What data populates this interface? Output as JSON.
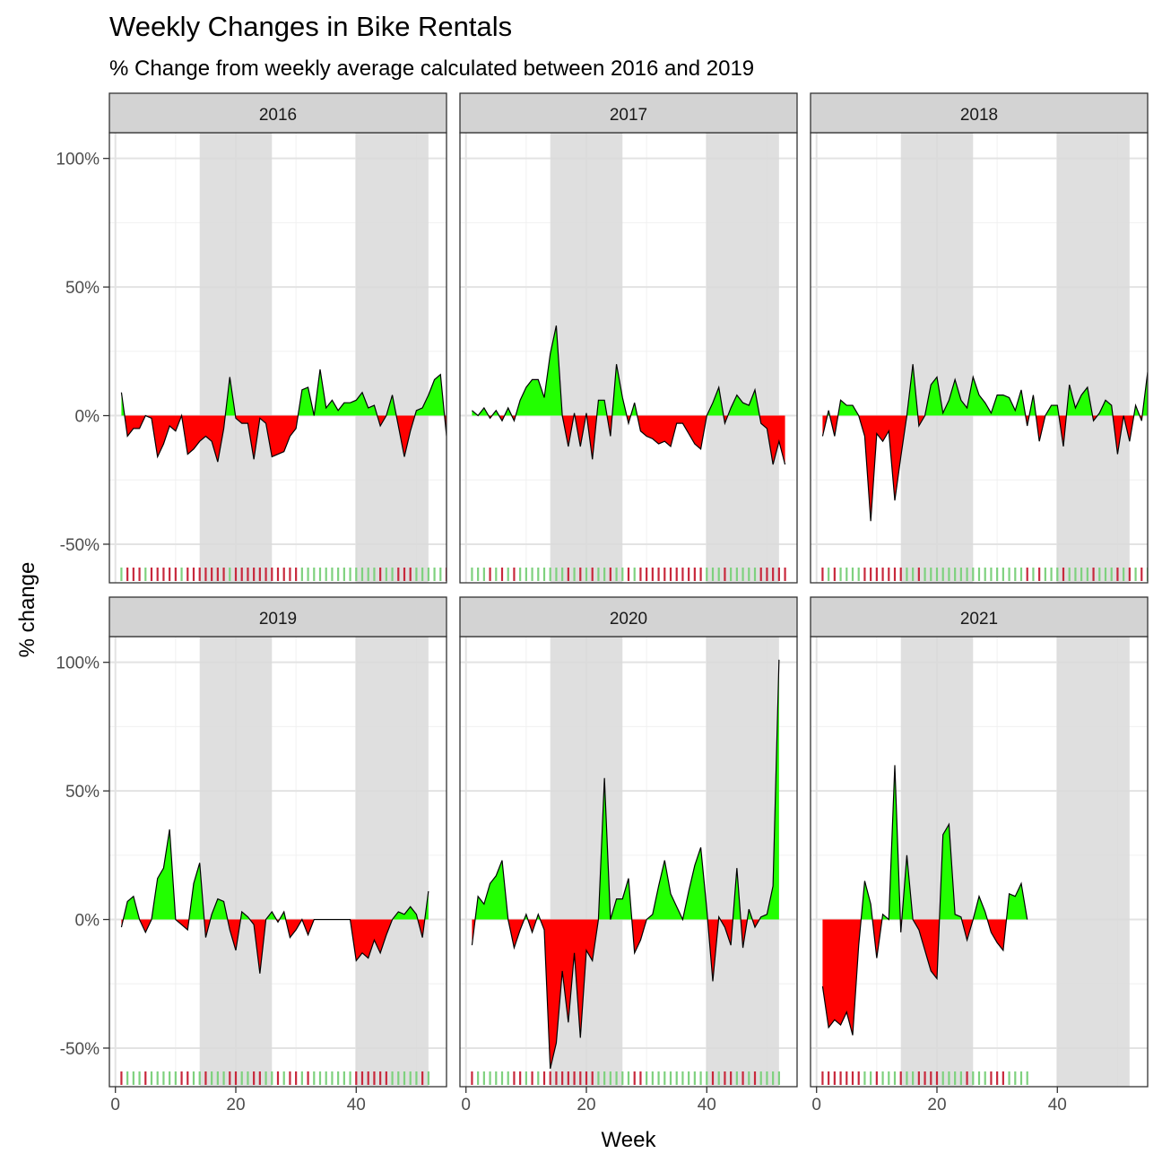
{
  "chart_data": {
    "type": "area",
    "title": "Weekly Changes in Bike Rentals",
    "subtitle": "% Change from weekly average calculated between 2016 and 2019",
    "xlabel": "Week",
    "ylabel": "% change",
    "xlim": [
      -1,
      55
    ],
    "ylim": [
      -65,
      110
    ],
    "x_ticks": [
      0,
      20,
      40
    ],
    "x_tick_labels": [
      "0",
      "20",
      "40"
    ],
    "y_ticks": [
      -50,
      0,
      50,
      100
    ],
    "y_tick_labels": [
      "-50%",
      "0%",
      "50%",
      "100%"
    ],
    "shaded_week_ranges": [
      [
        14,
        26
      ],
      [
        40,
        52
      ]
    ],
    "grid": true,
    "colors": {
      "positive": "#22ff00",
      "negative": "#ff0000",
      "rug_positive": "#7ed17e",
      "rug_negative": "#c8283c",
      "shade": "#d9d9d9",
      "strip": "#d3d3d3"
    },
    "panels": [
      {
        "label": "2016",
        "start_week": 1,
        "values": [
          9,
          -8,
          -5,
          -5,
          0,
          -1,
          -16,
          -11,
          -4,
          -6,
          0,
          -15,
          -13,
          -10,
          -8,
          -10,
          -18,
          -5,
          15,
          -1,
          -3,
          -3,
          -17,
          -1,
          -3,
          -16,
          -15,
          -14,
          -8,
          -5,
          10,
          11,
          0,
          18,
          3,
          6,
          2,
          5,
          5,
          6,
          9,
          3,
          4,
          -4,
          0,
          8,
          -4,
          -16,
          -6,
          2,
          3,
          8,
          14,
          16,
          -8,
          0
        ]
      },
      {
        "label": "2017",
        "start_week": 1,
        "values": [
          2,
          0,
          3,
          -1,
          2,
          -2,
          3,
          -2,
          6,
          11,
          14,
          14,
          7,
          24,
          35,
          0,
          -12,
          1,
          -12,
          1,
          -17,
          6,
          6,
          -8,
          20,
          7,
          -3,
          5,
          -6,
          -8,
          -9,
          -11,
          -10,
          -12,
          -3,
          -3,
          -7,
          -11,
          -13,
          0,
          5,
          11,
          -3,
          3,
          8,
          5,
          4,
          10,
          -3,
          -5,
          -19,
          -10,
          -19
        ]
      },
      {
        "label": "2018",
        "start_week": 1,
        "values": [
          -8,
          2,
          -8,
          6,
          4,
          4,
          0,
          -8,
          -41,
          -7,
          -10,
          -6,
          -33,
          -16,
          0,
          20,
          -4,
          0,
          12,
          15,
          1,
          6,
          14,
          6,
          3,
          15,
          8,
          5,
          1,
          8,
          8,
          7,
          2,
          10,
          -4,
          8,
          -10,
          0,
          4,
          4,
          -12,
          12,
          3,
          8,
          11,
          -2,
          1,
          6,
          4,
          -15,
          0,
          -10,
          4,
          -2,
          17
        ]
      },
      {
        "label": "2019",
        "start_week": 1,
        "values": [
          -3,
          7,
          9,
          0,
          -5,
          0,
          16,
          20,
          35,
          0,
          -2,
          -4,
          14,
          22,
          -7,
          2,
          8,
          7,
          -4,
          -12,
          3,
          1,
          -2,
          -21,
          0,
          3,
          -1,
          3,
          -7,
          -4,
          0,
          -6,
          0,
          0,
          0,
          0,
          0,
          0,
          0,
          -16,
          -13,
          -15,
          -8,
          -13,
          -6,
          0,
          3,
          2,
          5,
          2,
          -7,
          11
        ]
      },
      {
        "label": "2020",
        "start_week": 1,
        "values": [
          -10,
          9,
          6,
          14,
          17,
          23,
          0,
          -11,
          -4,
          2,
          -5,
          2,
          -4,
          -58,
          -48,
          -20,
          -40,
          -13,
          -46,
          -12,
          -16,
          0,
          55,
          0,
          8,
          8,
          16,
          -13,
          -8,
          0,
          2,
          13,
          23,
          10,
          5,
          0,
          11,
          21,
          28,
          4,
          -24,
          1,
          -3,
          -10,
          20,
          -11,
          4,
          -3,
          1,
          2,
          13,
          101
        ]
      },
      {
        "label": "2021",
        "start_week": 1,
        "values": [
          -26,
          -42,
          -39,
          -41,
          -36,
          -45,
          -10,
          15,
          6,
          -15,
          2,
          0,
          60,
          -5,
          25,
          0,
          -4,
          -12,
          -20,
          -23,
          33,
          37,
          2,
          1,
          -8,
          0,
          9,
          3,
          -5,
          -9,
          -12,
          10,
          9,
          14,
          0
        ]
      }
    ]
  }
}
